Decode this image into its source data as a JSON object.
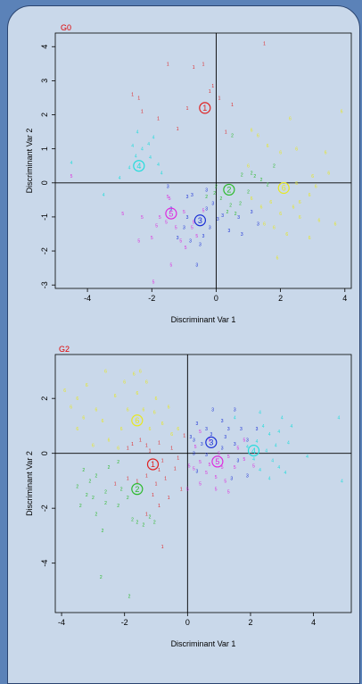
{
  "colors": {
    "1": "#e02020",
    "2": "#2cba2c",
    "3": "#1a2fd6",
    "4": "#25dcdc",
    "5": "#de2ade",
    "6": "#e8e820"
  },
  "chart_data": [
    {
      "type": "scatter",
      "title": "G0",
      "xlabel": "Discriminant Var 1",
      "ylabel": "Discriminant Var 2",
      "xlim": [
        -5,
        4.2
      ],
      "ylim": [
        -3.1,
        4.4
      ],
      "xticks": [
        -4,
        -2,
        0,
        2,
        4
      ],
      "yticks": [
        -3,
        -2,
        -1,
        0,
        1,
        2,
        3,
        4
      ],
      "centroids": [
        {
          "group": "1",
          "x": -0.35,
          "y": 2.2
        },
        {
          "group": "2",
          "x": 0.4,
          "y": -0.2
        },
        {
          "group": "3",
          "x": -0.5,
          "y": -1.1
        },
        {
          "group": "4",
          "x": -2.4,
          "y": 0.5
        },
        {
          "group": "5",
          "x": -1.4,
          "y": -0.9
        },
        {
          "group": "6",
          "x": 2.1,
          "y": -0.15
        }
      ],
      "points": {
        "1": [
          [
            -1.5,
            3.5
          ],
          [
            -0.7,
            3.4
          ],
          [
            -0.4,
            3.5
          ],
          [
            -0.2,
            2.7
          ],
          [
            -0.1,
            2.85
          ],
          [
            -2.4,
            2.5
          ],
          [
            -2.3,
            2.1
          ],
          [
            -0.9,
            2.2
          ],
          [
            0.5,
            2.3
          ],
          [
            1.5,
            4.1
          ],
          [
            -1.8,
            1.9
          ],
          [
            0.3,
            1.5
          ],
          [
            -2.6,
            2.6
          ],
          [
            -1.2,
            1.6
          ],
          [
            0.1,
            2.5
          ]
        ],
        "2": [
          [
            0.5,
            1.4
          ],
          [
            1.1,
            0.3
          ],
          [
            1.2,
            0.2
          ],
          [
            0.8,
            0.25
          ],
          [
            0.0,
            -0.1
          ],
          [
            0.15,
            -0.45
          ],
          [
            0.45,
            -0.65
          ],
          [
            0.6,
            -0.9
          ],
          [
            -0.3,
            -0.4
          ],
          [
            0.35,
            -0.85
          ],
          [
            1.4,
            0.1
          ],
          [
            1.6,
            -0.05
          ],
          [
            0.75,
            -0.6
          ],
          [
            1.8,
            0.5
          ],
          [
            -0.05,
            -0.3
          ],
          [
            1.0,
            -0.25
          ]
        ],
        "3": [
          [
            -0.9,
            -0.4
          ],
          [
            -0.75,
            -0.35
          ],
          [
            -1.5,
            -0.1
          ],
          [
            -0.3,
            -0.2
          ],
          [
            -1.0,
            -1.3
          ],
          [
            -1.2,
            -1.6
          ],
          [
            -0.8,
            -1.7
          ],
          [
            -0.5,
            -1.8
          ],
          [
            -0.6,
            -2.4
          ],
          [
            -0.2,
            -1.3
          ],
          [
            0.05,
            -1.05
          ],
          [
            0.4,
            -1.4
          ],
          [
            0.8,
            -1.5
          ],
          [
            1.3,
            -1.2
          ],
          [
            0.7,
            -1.0
          ],
          [
            0.2,
            -0.95
          ],
          [
            -0.3,
            -0.75
          ],
          [
            -0.1,
            -0.6
          ],
          [
            -1.4,
            -0.75
          ],
          [
            -0.4,
            -1.55
          ],
          [
            -0.9,
            -1.0
          ],
          [
            1.1,
            -0.85
          ]
        ],
        "4": [
          [
            -4.5,
            0.6
          ],
          [
            -3.5,
            -0.35
          ],
          [
            -2.5,
            0.8
          ],
          [
            -2.45,
            1.5
          ],
          [
            -2.3,
            1.0
          ],
          [
            -2.1,
            1.15
          ],
          [
            -1.8,
            0.55
          ],
          [
            -1.7,
            0.3
          ],
          [
            -2.05,
            0.75
          ],
          [
            -2.7,
            0.45
          ],
          [
            -3.0,
            0.15
          ],
          [
            -1.95,
            1.35
          ],
          [
            -2.6,
            1.1
          ]
        ],
        "5": [
          [
            -4.5,
            0.2
          ],
          [
            -2.9,
            -0.9
          ],
          [
            -2.3,
            -1.0
          ],
          [
            -1.5,
            -0.4
          ],
          [
            -1.45,
            -0.45
          ],
          [
            -1.75,
            -1.0
          ],
          [
            -1.55,
            -1.15
          ],
          [
            -1.25,
            -1.3
          ],
          [
            -1.1,
            -1.7
          ],
          [
            -0.95,
            -1.9
          ],
          [
            -0.75,
            -1.3
          ],
          [
            -0.6,
            -1.55
          ],
          [
            -0.7,
            -1.15
          ],
          [
            -1.0,
            -0.85
          ],
          [
            -1.4,
            -2.4
          ],
          [
            -2.0,
            -1.6
          ],
          [
            -1.95,
            -2.9
          ],
          [
            -0.4,
            -0.8
          ],
          [
            -1.85,
            -1.25
          ],
          [
            -2.4,
            -1.7
          ]
        ],
        "6": [
          [
            1.3,
            1.4
          ],
          [
            1.1,
            1.55
          ],
          [
            1.6,
            1.1
          ],
          [
            2.5,
            1.0
          ],
          [
            3.4,
            0.9
          ],
          [
            3.9,
            2.1
          ],
          [
            2.3,
            1.9
          ],
          [
            2.0,
            0.9
          ],
          [
            3.0,
            0.2
          ],
          [
            2.5,
            0.0
          ],
          [
            3.1,
            -0.1
          ],
          [
            2.9,
            -0.35
          ],
          [
            2.4,
            -0.7
          ],
          [
            2.0,
            -0.9
          ],
          [
            2.6,
            -1.0
          ],
          [
            3.2,
            -1.1
          ],
          [
            3.7,
            -1.2
          ],
          [
            1.8,
            -1.3
          ],
          [
            1.5,
            -1.2
          ],
          [
            2.9,
            -1.6
          ],
          [
            1.1,
            -0.45
          ],
          [
            2.2,
            -1.5
          ],
          [
            1.4,
            -0.7
          ],
          [
            1.9,
            -2.2
          ],
          [
            1.0,
            0.5
          ],
          [
            3.5,
            0.3
          ],
          [
            2.6,
            -0.55
          ],
          [
            1.7,
            -0.55
          ]
        ]
      }
    },
    {
      "type": "scatter",
      "title": "G2",
      "xlabel": "Discriminant Var 1",
      "ylabel": "Discriminant Var 2",
      "xlim": [
        -4.2,
        5.2
      ],
      "ylim": [
        -5.8,
        3.6
      ],
      "xticks": [
        -4,
        -2,
        0,
        2,
        4
      ],
      "yticks": [
        -4,
        -2,
        0,
        2
      ],
      "centroids": [
        {
          "group": "1",
          "x": -1.1,
          "y": -0.4
        },
        {
          "group": "2",
          "x": -1.6,
          "y": -1.3
        },
        {
          "group": "3",
          "x": 0.75,
          "y": 0.4
        },
        {
          "group": "4",
          "x": 2.1,
          "y": 0.1
        },
        {
          "group": "5",
          "x": 0.95,
          "y": -0.3
        },
        {
          "group": "6",
          "x": -1.6,
          "y": 1.2
        }
      ],
      "points": {
        "1": [
          [
            -1.9,
            0.2
          ],
          [
            -1.5,
            0.5
          ],
          [
            -1.3,
            0.3
          ],
          [
            -1.2,
            0.1
          ],
          [
            -0.9,
            0.4
          ],
          [
            -0.5,
            0.2
          ],
          [
            -0.3,
            -0.15
          ],
          [
            -0.8,
            -0.25
          ],
          [
            -0.9,
            -0.6
          ],
          [
            -1.3,
            -0.8
          ],
          [
            -1.6,
            -1.0
          ],
          [
            -1.0,
            -1.1
          ],
          [
            -0.7,
            -0.9
          ],
          [
            -0.4,
            -0.55
          ],
          [
            -0.2,
            -1.3
          ],
          [
            -0.6,
            -1.6
          ],
          [
            -0.9,
            -1.9
          ],
          [
            -1.3,
            -2.2
          ],
          [
            -0.8,
            -3.4
          ],
          [
            -1.9,
            -0.9
          ],
          [
            -2.3,
            -1.1
          ],
          [
            -0.1,
            0.65
          ],
          [
            -1.1,
            -1.5
          ],
          [
            -1.75,
            0.35
          ]
        ],
        "2": [
          [
            -2.2,
            -0.3
          ],
          [
            -2.5,
            -0.5
          ],
          [
            -2.9,
            -0.8
          ],
          [
            -3.3,
            -0.6
          ],
          [
            -3.1,
            -1.0
          ],
          [
            -3.5,
            -1.2
          ],
          [
            -3.4,
            -1.9
          ],
          [
            -3.0,
            -1.6
          ],
          [
            -2.9,
            -2.2
          ],
          [
            -2.6,
            -1.8
          ],
          [
            -2.2,
            -1.9
          ],
          [
            -1.9,
            -1.6
          ],
          [
            -1.6,
            -2.5
          ],
          [
            -1.2,
            -2.3
          ],
          [
            -1.4,
            -2.6
          ],
          [
            -1.05,
            -2.5
          ],
          [
            -1.75,
            -2.4
          ],
          [
            -2.7,
            -2.8
          ],
          [
            -2.75,
            -4.5
          ],
          [
            -1.85,
            -5.2
          ],
          [
            -2.1,
            -1.3
          ],
          [
            -2.6,
            -1.4
          ],
          [
            -3.2,
            -1.5
          ]
        ],
        "3": [
          [
            0.3,
            1.1
          ],
          [
            0.6,
            0.9
          ],
          [
            0.8,
            1.6
          ],
          [
            1.1,
            1.2
          ],
          [
            1.5,
            1.6
          ],
          [
            1.3,
            0.9
          ],
          [
            0.2,
            0.5
          ],
          [
            0.1,
            0.6
          ],
          [
            0.45,
            0.35
          ],
          [
            0.2,
            0.0
          ],
          [
            0.6,
            -0.05
          ],
          [
            1.1,
            0.2
          ],
          [
            1.5,
            0.35
          ],
          [
            1.9,
            0.5
          ],
          [
            1.6,
            -0.25
          ],
          [
            1.4,
            -0.9
          ],
          [
            1.9,
            -0.8
          ],
          [
            0.3,
            -0.65
          ],
          [
            0.75,
            0.7
          ],
          [
            1.2,
            0.6
          ],
          [
            2.2,
            0.9
          ],
          [
            1.7,
            0.9
          ]
        ],
        "4": [
          [
            1.5,
            1.3
          ],
          [
            2.3,
            1.5
          ],
          [
            2.4,
            1.0
          ],
          [
            2.6,
            0.7
          ],
          [
            2.9,
            0.8
          ],
          [
            2.8,
            0.3
          ],
          [
            2.5,
            0.1
          ],
          [
            2.1,
            -0.2
          ],
          [
            2.3,
            -0.6
          ],
          [
            2.6,
            -0.9
          ],
          [
            2.9,
            -0.5
          ],
          [
            3.1,
            -0.7
          ],
          [
            3.2,
            0.4
          ],
          [
            3.3,
            1.0
          ],
          [
            4.8,
            1.3
          ],
          [
            4.9,
            -1.0
          ],
          [
            3.8,
            -0.1
          ],
          [
            1.9,
            0.25
          ],
          [
            2.2,
            0.45
          ],
          [
            2.7,
            -0.25
          ],
          [
            3.0,
            1.3
          ]
        ],
        "5": [
          [
            0.4,
            0.8
          ],
          [
            0.7,
            0.5
          ],
          [
            1.0,
            0.0
          ],
          [
            1.3,
            -0.1
          ],
          [
            1.1,
            -0.5
          ],
          [
            0.7,
            -0.4
          ],
          [
            0.4,
            -0.3
          ],
          [
            0.2,
            -0.55
          ],
          [
            0.05,
            -0.45
          ],
          [
            0.6,
            -0.7
          ],
          [
            0.9,
            -0.85
          ],
          [
            1.2,
            -1.0
          ],
          [
            1.5,
            -0.5
          ],
          [
            1.8,
            -0.2
          ],
          [
            0.9,
            -1.3
          ],
          [
            0.4,
            -1.1
          ],
          [
            0.0,
            -1.3
          ],
          [
            1.6,
            0.2
          ],
          [
            2.1,
            -0.45
          ],
          [
            0.25,
            0.25
          ],
          [
            1.8,
            0.5
          ],
          [
            1.3,
            -1.4
          ]
        ],
        "6": [
          [
            -3.9,
            2.3
          ],
          [
            -3.5,
            2.0
          ],
          [
            -3.2,
            2.5
          ],
          [
            -2.6,
            3.0
          ],
          [
            -2.3,
            2.1
          ],
          [
            -2.9,
            1.6
          ],
          [
            -3.3,
            1.3
          ],
          [
            -2.7,
            1.2
          ],
          [
            -2.1,
            0.9
          ],
          [
            -2.5,
            0.5
          ],
          [
            -3.0,
            0.3
          ],
          [
            -3.5,
            0.9
          ],
          [
            -1.9,
            1.6
          ],
          [
            -1.6,
            2.2
          ],
          [
            -1.3,
            2.6
          ],
          [
            -1.7,
            2.9
          ],
          [
            -1.05,
            1.5
          ],
          [
            -0.8,
            1.1
          ],
          [
            -0.5,
            0.7
          ],
          [
            -1.2,
            0.9
          ],
          [
            -1.0,
            2.0
          ],
          [
            -0.6,
            1.7
          ],
          [
            -0.3,
            0.9
          ],
          [
            -2.0,
            2.6
          ],
          [
            -1.5,
            3.0
          ],
          [
            -2.2,
            0.2
          ],
          [
            -3.7,
            1.7
          ],
          [
            -1.4,
            1.6
          ]
        ]
      }
    }
  ]
}
